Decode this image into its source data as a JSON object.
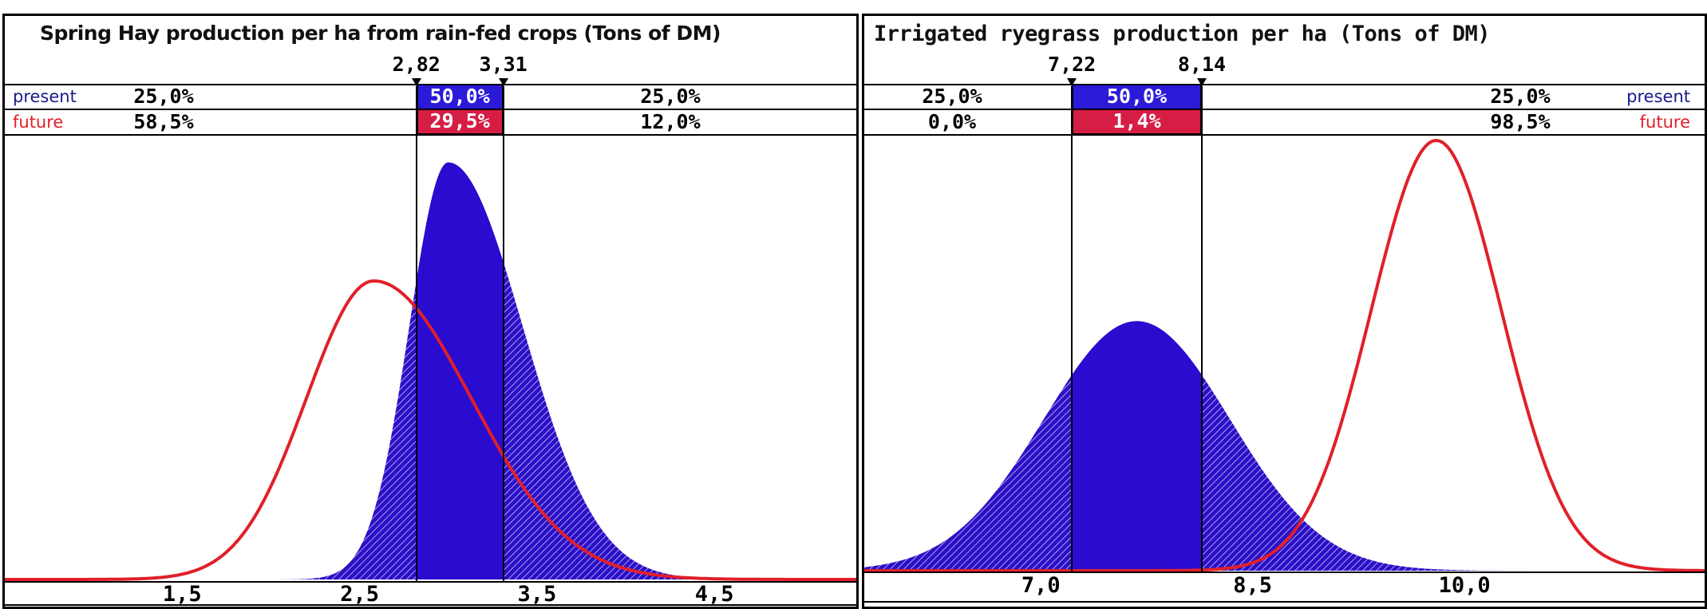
{
  "chart_data": [
    {
      "type": "area",
      "title": "Spring Hay production per ha from rain-fed crops (Tons of DM)",
      "xlim": [
        0.5,
        5.3
      ],
      "x_ticks": [
        "1,5",
        "2,5",
        "3,5",
        "4,5"
      ],
      "x_tick_values": [
        1.5,
        2.5,
        3.5,
        4.5
      ],
      "bounds": {
        "low": "2,82",
        "high": "3,31",
        "low_value": 2.82,
        "high_value": 3.31
      },
      "rows": [
        {
          "label": "present",
          "below": "25,0%",
          "middle": "50,0%",
          "above": "25,0%"
        },
        {
          "label": "future",
          "below": "58,5%",
          "middle": "29,5%",
          "above": "12,0%"
        }
      ],
      "series": [
        {
          "name": "present",
          "distribution": "right-skewed",
          "peak_x": 3.0,
          "peak_height": 0.95,
          "fill": "#2b10c8"
        },
        {
          "name": "future",
          "distribution": "right-skewed",
          "peak_x": 2.58,
          "peak_height": 0.68,
          "line": "#e0202a"
        }
      ],
      "colors": {
        "present_cell": "#2b1ad8",
        "future_cell": "#d61e45",
        "present_text": "#1a1a8a",
        "future_text": "#e0202a"
      }
    },
    {
      "type": "area",
      "title": "Irrigated ryegrass production per ha (Tons of DM)",
      "xlim": [
        5.75,
        11.7
      ],
      "x_ticks": [
        "7,0",
        "8,5",
        "10,0"
      ],
      "x_tick_values": [
        7.0,
        8.5,
        10.0
      ],
      "bounds": {
        "low": "7,22",
        "high": "8,14",
        "low_value": 7.22,
        "high_value": 8.14
      },
      "rows": [
        {
          "label": "present",
          "below": "25,0%",
          "middle": "50,0%",
          "above": "25,0%"
        },
        {
          "label": "future",
          "below": "0,0%",
          "middle": "1,4%",
          "above": "98,5%"
        }
      ],
      "series": [
        {
          "name": "present",
          "distribution": "normal",
          "mean": 7.68,
          "sd": 0.66,
          "peak_height": 0.58,
          "fill": "#2b10c8"
        },
        {
          "name": "future",
          "distribution": "normal",
          "mean": 9.8,
          "sd": 0.46,
          "peak_height": 1.0,
          "line": "#e0202a"
        }
      ],
      "colors": {
        "present_cell": "#2b1ad8",
        "future_cell": "#d61e45",
        "present_text": "#1a1a8a",
        "future_text": "#e0202a"
      }
    }
  ]
}
